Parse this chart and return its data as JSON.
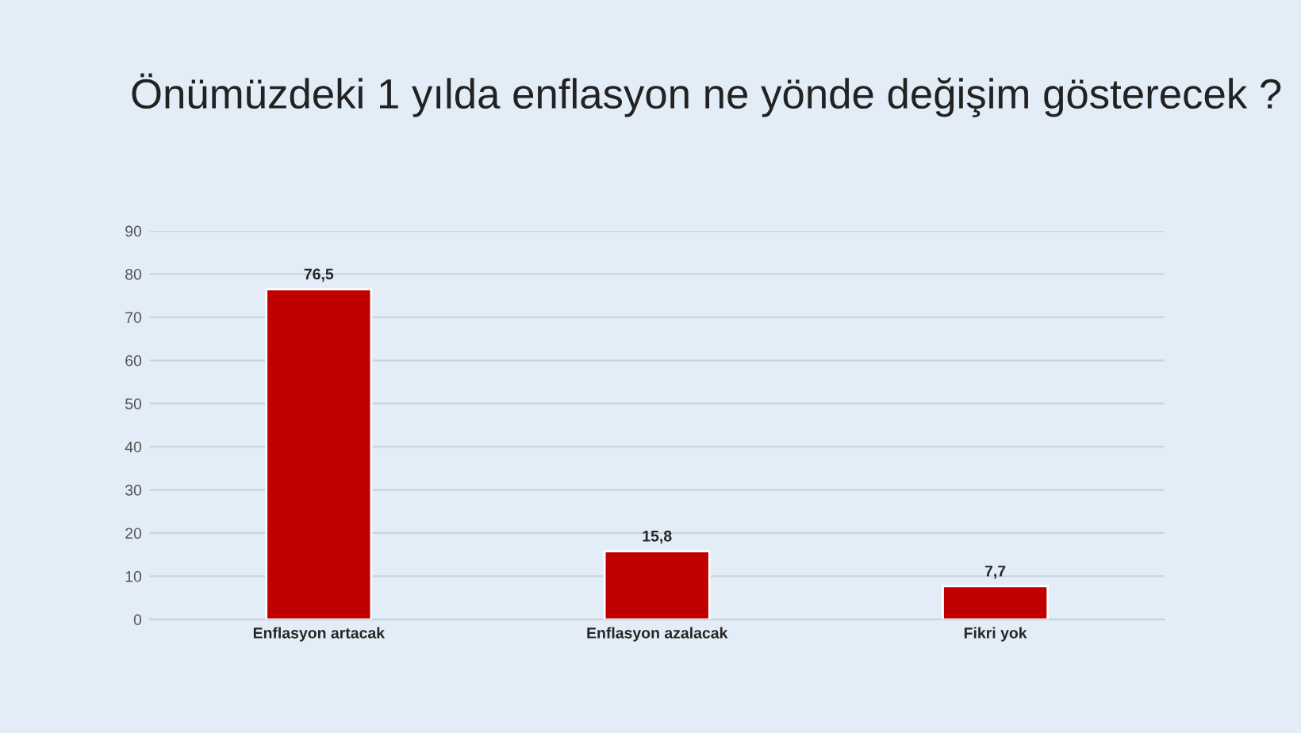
{
  "chart_data": {
    "type": "bar",
    "title": "Önümüzdeki 1 yılda enflasyon ne yönde değişim gösterecek ?",
    "categories": [
      "Enflasyon artacak",
      "Enflasyon azalacak",
      "Fikri yok"
    ],
    "values": [
      76.5,
      15.8,
      7.7
    ],
    "color": "#c00000",
    "value_labels": [
      "76,5",
      "15,8",
      "7,7"
    ],
    "ylim": [
      0,
      90
    ],
    "yticks": [
      0,
      10,
      20,
      30,
      40,
      50,
      60,
      70,
      80,
      90
    ],
    "grid": "y",
    "legend": false
  }
}
